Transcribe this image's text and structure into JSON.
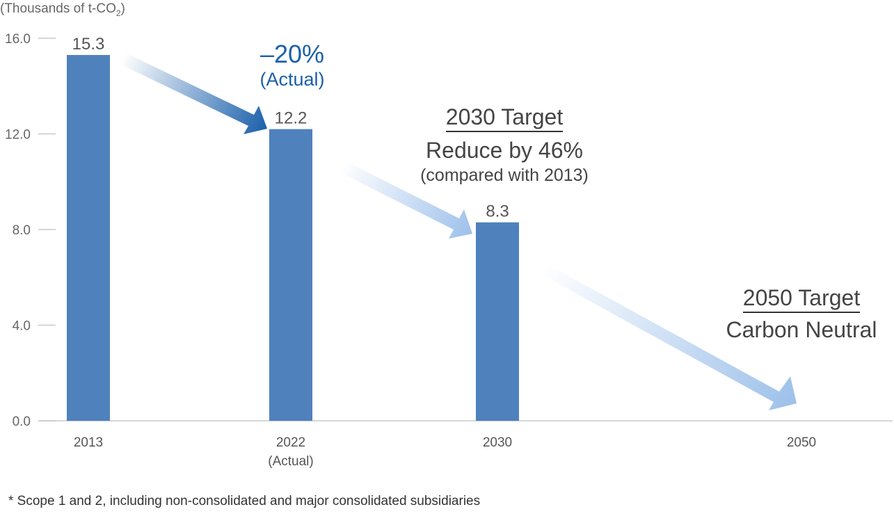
{
  "chart_data": {
    "type": "bar",
    "unit_label": "(Thousands of t-CO",
    "unit_subscript": "2",
    "unit_suffix": ")",
    "categories": [
      "2013",
      "2022",
      "2030",
      "2050"
    ],
    "category_sublabels": [
      "",
      "(Actual)",
      "",
      ""
    ],
    "values": [
      15.3,
      12.2,
      8.3,
      null
    ],
    "value_labels": [
      "15.3",
      "12.2",
      "8.3",
      ""
    ],
    "ylim": [
      0,
      16
    ],
    "yticks": [
      0,
      4,
      8,
      12,
      16
    ],
    "ytick_labels": [
      "0.0",
      "4.0",
      "8.0",
      "12.0",
      "16.0"
    ],
    "bar_color": "#4f81bd",
    "grid": false,
    "annotations": {
      "actual_reduction": {
        "value": "–20%",
        "note": "(Actual)",
        "color": "#1a5fab"
      },
      "target_2030": {
        "title": "2030 Target",
        "line1": "Reduce by 46%",
        "line2": "(compared with 2013)"
      },
      "target_2050": {
        "title": "2050 Target",
        "line1": "Carbon Neutral"
      }
    }
  },
  "footnote": "* Scope 1 and 2, including non-consolidated and major consolidated subsidiaries"
}
